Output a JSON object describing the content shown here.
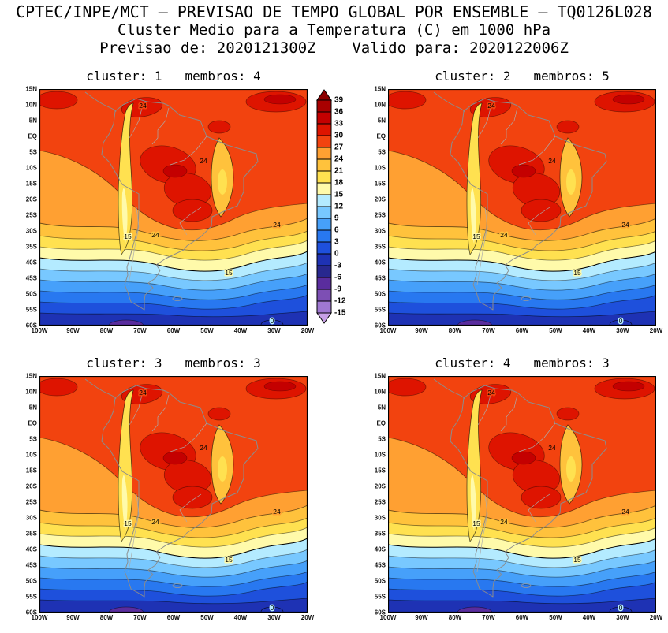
{
  "header": {
    "line1": "CPTEC/INPE/MCT — PREVISAO DE TEMPO GLOBAL POR ENSEMBLE — TQ0126L028",
    "line2": "Cluster Medio para a Temperatura (C) em 1000 hPa",
    "line3": "Previsao de: 2020121300Z    Valido para: 2020122006Z"
  },
  "panels": [
    {
      "title": "cluster: 1   membros: 4",
      "cluster": 1,
      "membros": 4
    },
    {
      "title": "cluster: 2   membros: 5",
      "cluster": 2,
      "membros": 5
    },
    {
      "title": "cluster: 3   membros: 3",
      "cluster": 3,
      "membros": 3
    },
    {
      "title": "cluster: 4   membros: 3",
      "cluster": 4,
      "membros": 3
    }
  ],
  "axes": {
    "lat_labels": [
      "15N",
      "10N",
      "5N",
      "EQ",
      "5S",
      "10S",
      "15S",
      "20S",
      "25S",
      "30S",
      "35S",
      "40S",
      "45S",
      "50S",
      "55S",
      "60S"
    ],
    "lon_labels": [
      "100W",
      "90W",
      "80W",
      "70W",
      "60W",
      "50W",
      "40W",
      "30W",
      "20W"
    ]
  },
  "colorbar": {
    "levels": [
      39,
      36,
      33,
      30,
      27,
      24,
      21,
      18,
      15,
      12,
      9,
      6,
      3,
      0,
      -3,
      -6,
      -9,
      -12,
      -15
    ],
    "colors": [
      "#8C0000",
      "#A80000",
      "#C40000",
      "#DE1400",
      "#F2430F",
      "#FFA032",
      "#FFC23C",
      "#FFE150",
      "#FFFAAA",
      "#B4EBFF",
      "#78C8FF",
      "#46A0FA",
      "#2878F0",
      "#1E50DC",
      "#1E32B4",
      "#28288F",
      "#5A2D9E",
      "#7D4FB4",
      "#A078D2",
      "#C8A0E6"
    ]
  },
  "map_labels": {
    "t24": "24",
    "t15": "15",
    "t0": "0"
  },
  "chart_data": {
    "type": "heatmap",
    "subtype": "filled-contour-map",
    "title": "Cluster Medio para a Temperatura (C) em 1000 hPa",
    "model_header": "CPTEC/INPE/MCT — PREVISAO DE TEMPO GLOBAL POR ENSEMBLE — TQ0126L028",
    "forecast_init": "2020121300Z",
    "forecast_valid": "2020122006Z",
    "variable": "Temperatura",
    "units": "C",
    "level": "1000 hPa",
    "panels": [
      {
        "cluster": 1,
        "membros": 4
      },
      {
        "cluster": 2,
        "membros": 5
      },
      {
        "cluster": 3,
        "membros": 3
      },
      {
        "cluster": 4,
        "membros": 3
      }
    ],
    "region": "South America",
    "lat_ticks": [
      "15N",
      "10N",
      "5N",
      "EQ",
      "5S",
      "10S",
      "15S",
      "20S",
      "25S",
      "30S",
      "35S",
      "40S",
      "45S",
      "50S",
      "55S",
      "60S"
    ],
    "lon_ticks": [
      "100W",
      "90W",
      "80W",
      "70W",
      "60W",
      "50W",
      "40W",
      "30W",
      "20W"
    ],
    "contour_levels_c": [
      39,
      36,
      33,
      30,
      27,
      24,
      21,
      18,
      15,
      12,
      9,
      6,
      3,
      0,
      -3,
      -6,
      -9,
      -12,
      -15
    ],
    "labeled_contours_c": [
      24,
      15,
      0
    ],
    "legend_position": "vertical bar between top-left and top-right panels",
    "gradient_description": "Warm (red ~27-33C) over tropics and Amazon, orange 24-27C mid-latitudes, yellow 18-24C subtropics and Andes, blues 0-15C south of 40S, violet below 0C near 60S"
  }
}
